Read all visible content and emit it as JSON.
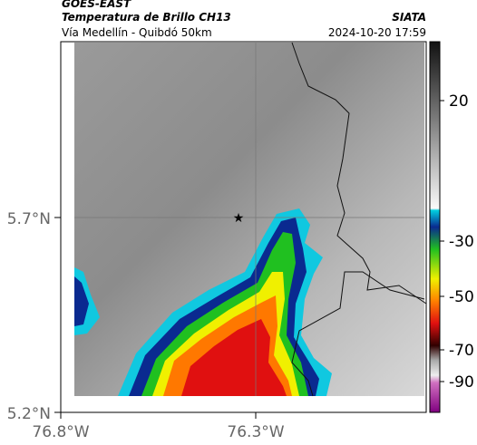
{
  "header": {
    "title": "GOES-EAST",
    "subtitle": "Temperatura de Brillo CH13",
    "location": "Vía Medellín - Quibdó 50km",
    "source": "SIATA",
    "timestamp": "2024-10-20 17:59"
  },
  "axes": {
    "y_ticks": [
      "5.7°N",
      "5.2°N"
    ],
    "x_ticks": [
      "76.8°W",
      "76.3°W"
    ]
  },
  "colorbar": {
    "ticks": [
      20,
      -30,
      -50,
      -70,
      -90
    ]
  }
}
